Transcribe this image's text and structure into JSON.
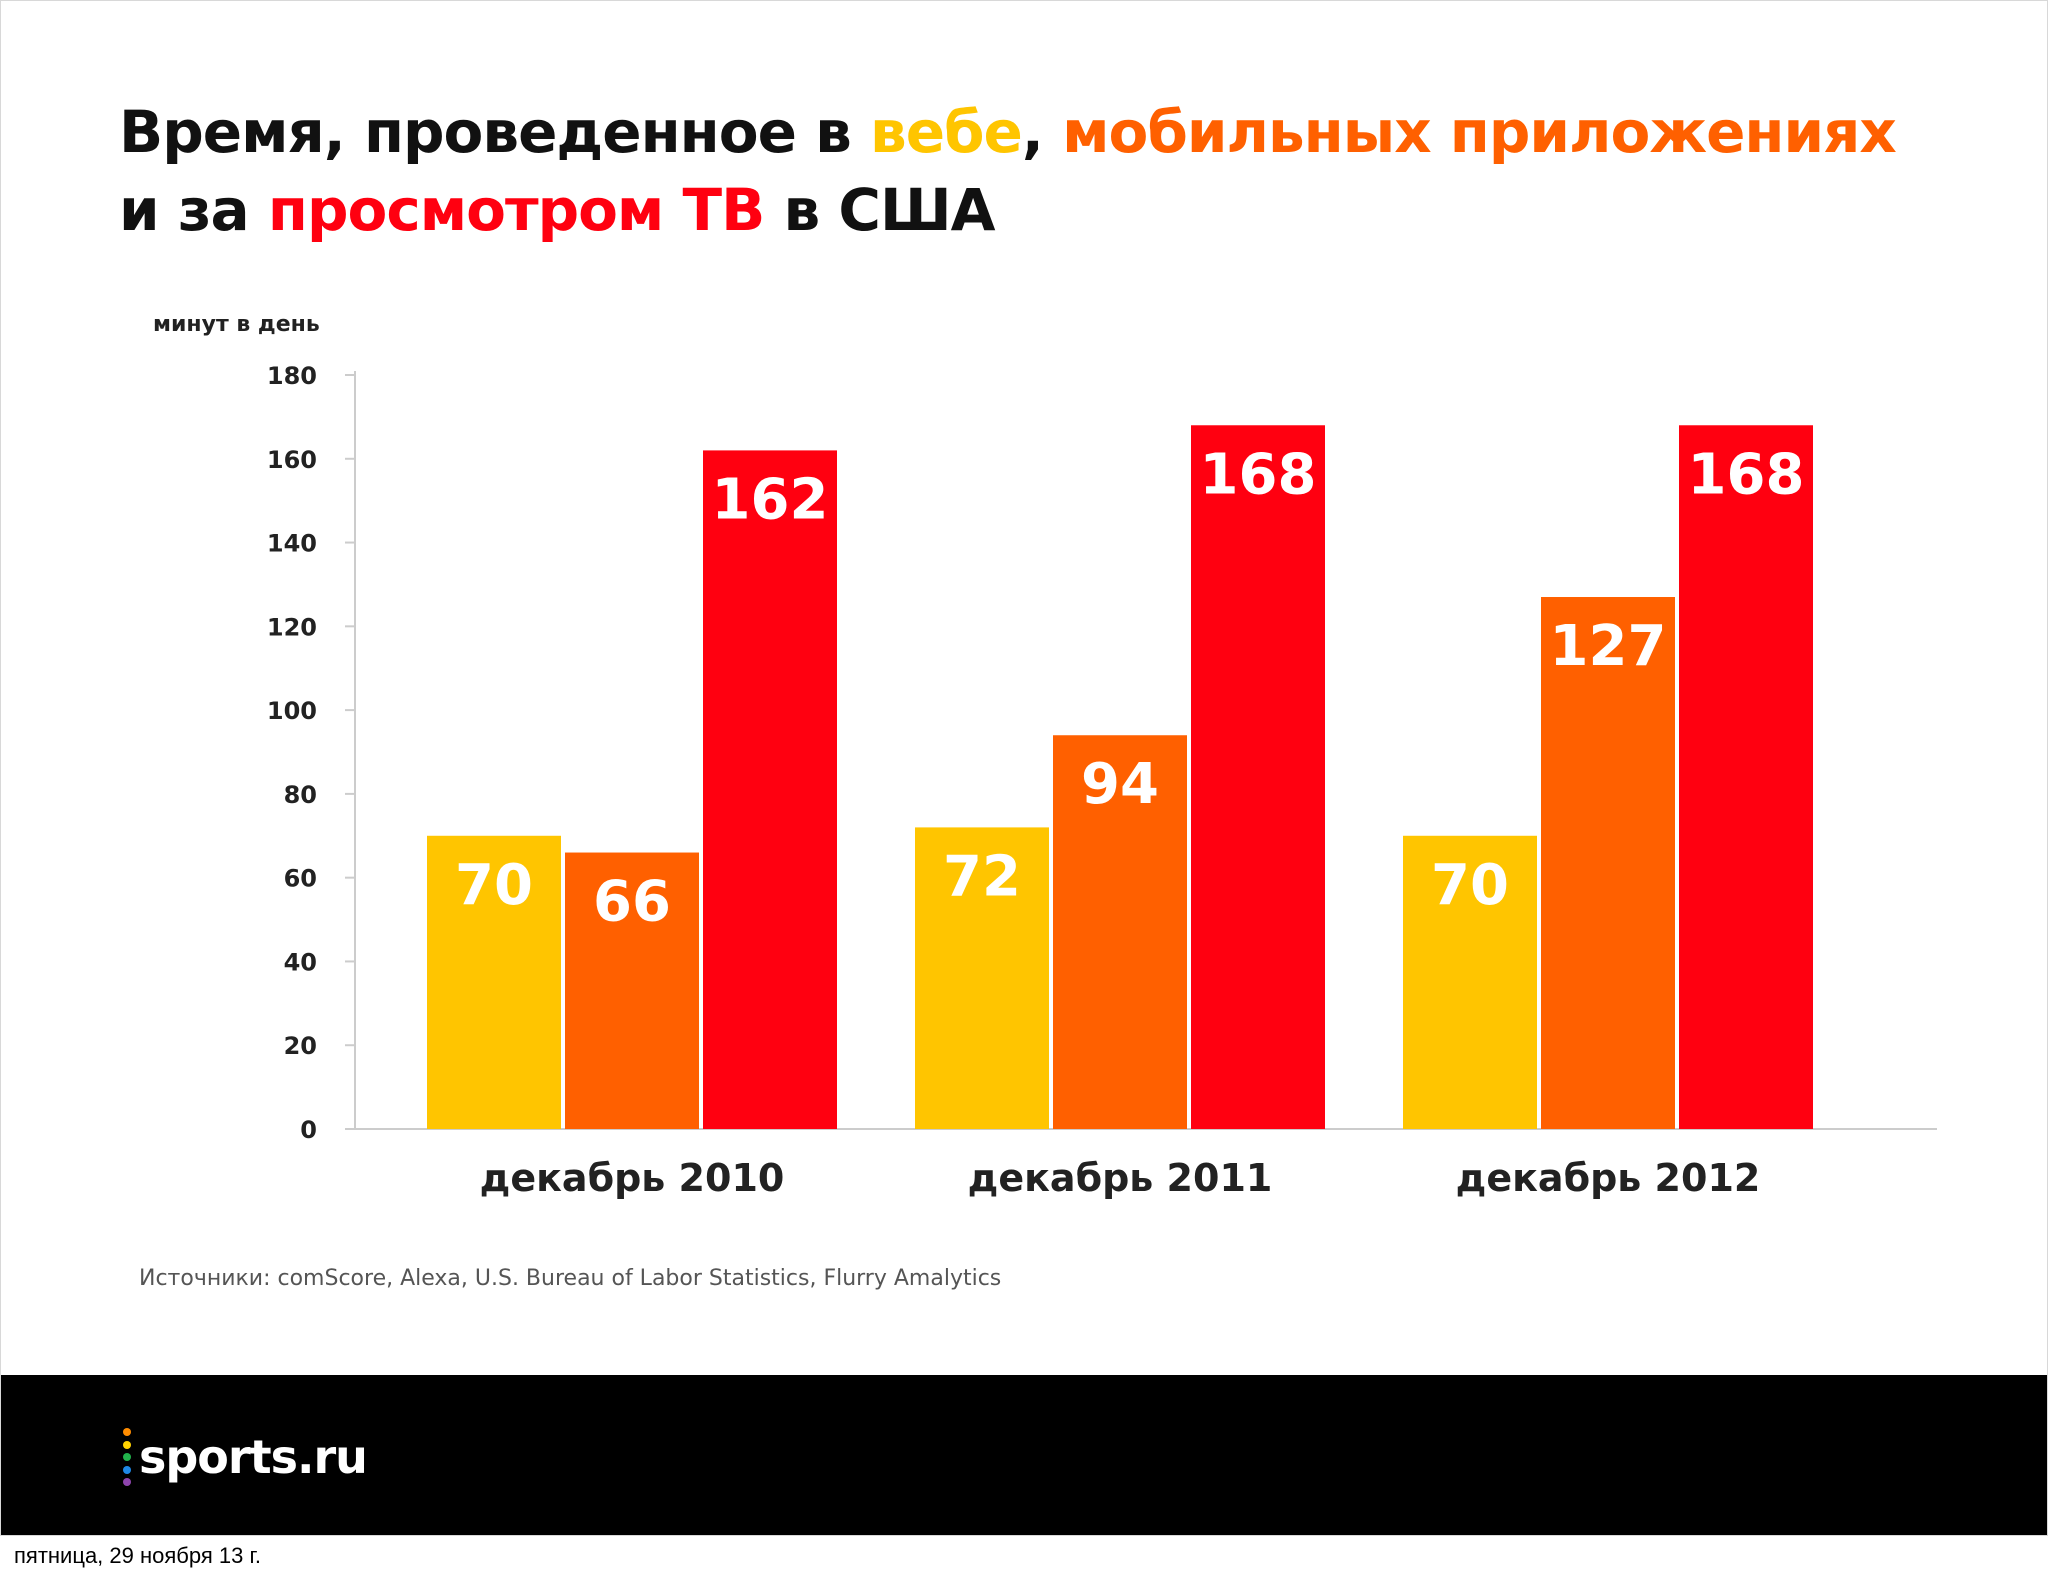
{
  "title": {
    "part1": "Время, проведенное в ",
    "web": "вебе",
    "part2": ", ",
    "mobile": "мобильных приложениях",
    "line2_prefix": "и за ",
    "tv": "просмотром ТВ",
    "line2_suffix": " в США"
  },
  "colors": {
    "web": "#ffc500",
    "mobile": "#ff6000",
    "tv": "#ff0010",
    "text": "#111111",
    "axis": "#cccccc"
  },
  "chart_data": {
    "type": "bar",
    "ylabel": "минут в день",
    "ylim": [
      0,
      180
    ],
    "yticks": [
      0,
      20,
      40,
      60,
      80,
      100,
      120,
      140,
      160,
      180
    ],
    "categories": [
      "декабрь 2010",
      "декабрь 2011",
      "декабрь 2012"
    ],
    "series": [
      {
        "key": "web",
        "values": [
          70,
          72,
          70
        ]
      },
      {
        "key": "mobile",
        "values": [
          66,
          94,
          127
        ]
      },
      {
        "key": "tv",
        "values": [
          162,
          168,
          168
        ]
      }
    ],
    "data_labels": true,
    "grid": false
  },
  "source": "Источники: comScore, Alexa, U.S. Bureau of Labor Statistics, Flurry Amalytics",
  "footer": {
    "logo_text": "sports.ru",
    "logo_dot_colors": [
      "#ff8c00",
      "#ffd200",
      "#21b24b",
      "#1e88e5",
      "#8e44ad"
    ]
  },
  "date_caption": "пятница, 29 ноября 13 г."
}
